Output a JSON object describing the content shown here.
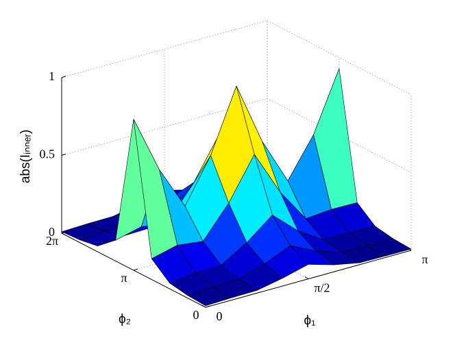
{
  "chart_data": {
    "type": "surface",
    "colormap": "jet",
    "grid": true,
    "xlabel": "ϕ₁",
    "ylabel": "ϕ₂",
    "zlabel": "abs(Iᵢₙₙₑᵣ)",
    "x": [
      0,
      0.3927,
      0.7854,
      1.1781,
      1.5708,
      1.9635,
      2.3562,
      2.7489,
      3.1416
    ],
    "y": [
      0,
      0.7854,
      1.5708,
      2.3562,
      3.1416,
      3.927,
      4.7124,
      5.4978,
      6.2832
    ],
    "z": [
      [
        0.01,
        0.017,
        0.037,
        0.134,
        0.97,
        0.134,
        0.037,
        0.017,
        0.01
      ],
      [
        0.015,
        0.026,
        0.056,
        0.175,
        0.6,
        0.175,
        0.056,
        0.026,
        0.015
      ],
      [
        0.017,
        0.03,
        0.06,
        0.154,
        0.32,
        0.154,
        0.06,
        0.03,
        0.017
      ],
      [
        0.05,
        0.083,
        0.159,
        0.354,
        0.6,
        0.354,
        0.159,
        0.083,
        0.05
      ],
      [
        0.093,
        0.154,
        0.291,
        0.621,
        1.0,
        0.621,
        0.291,
        0.154,
        0.093
      ],
      [
        0.044,
        0.073,
        0.143,
        0.334,
        0.6,
        0.334,
        0.143,
        0.073,
        0.044
      ],
      [
        0.012,
        0.02,
        0.041,
        0.117,
        0.3,
        0.117,
        0.041,
        0.02,
        0.012
      ],
      [
        0.01,
        0.019,
        0.04,
        0.131,
        0.55,
        0.131,
        0.04,
        0.019,
        0.01
      ],
      [
        0.009,
        0.016,
        0.036,
        0.128,
        0.93,
        0.128,
        0.036,
        0.016,
        0.009
      ]
    ],
    "xlim": [
      0,
      3.1416
    ],
    "ylim": [
      0,
      6.2832
    ],
    "zlim": [
      0,
      1
    ],
    "xticks": [
      0,
      {
        "value": 1.5708,
        "label": "π/2"
      },
      {
        "value": 3.1416,
        "label": "π"
      }
    ],
    "yticks": [
      0,
      {
        "value": 3.1416,
        "label": "π"
      },
      {
        "value": 6.2832,
        "label": "2π"
      }
    ],
    "zticks": [
      0,
      0.5,
      1
    ]
  }
}
